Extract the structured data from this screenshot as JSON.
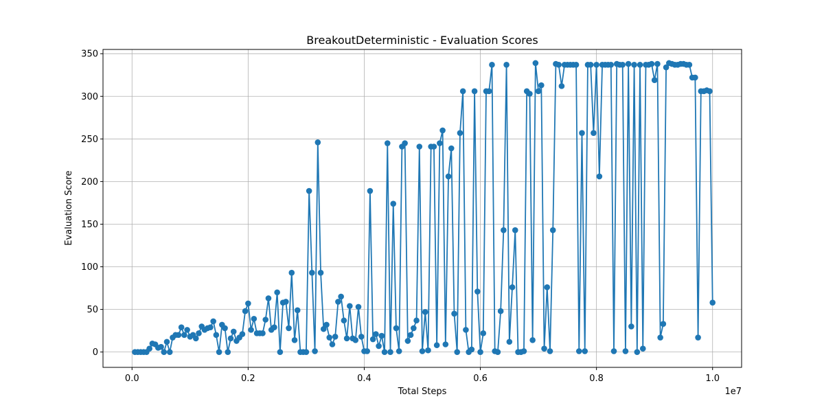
{
  "chart_data": {
    "type": "line",
    "title": "BreakoutDeterministic - Evaluation Scores",
    "xlabel": "Total Steps",
    "ylabel": "Evaluation Score",
    "x_offset_label": "1e7",
    "xlim": [
      -0.05,
      1.05
    ],
    "ylim": [
      -18,
      355
    ],
    "xticks": [
      0.0,
      0.2,
      0.4,
      0.6,
      0.8,
      1.0
    ],
    "xtick_labels": [
      "0.0",
      "0.2",
      "0.4",
      "0.6",
      "0.8",
      "1.0"
    ],
    "yticks": [
      0,
      50,
      100,
      150,
      200,
      250,
      300,
      350
    ],
    "ytick_labels": [
      "0",
      "50",
      "100",
      "150",
      "200",
      "250",
      "300",
      "350"
    ],
    "grid": true,
    "line_color": "#1f77b4",
    "marker": "circle",
    "x": [
      0.005,
      0.01,
      0.015,
      0.02,
      0.025,
      0.03,
      0.035,
      0.04,
      0.045,
      0.05,
      0.055,
      0.06,
      0.065,
      0.07,
      0.075,
      0.08,
      0.085,
      0.09,
      0.095,
      0.1,
      0.105,
      0.11,
      0.115,
      0.12,
      0.125,
      0.13,
      0.135,
      0.14,
      0.145,
      0.15,
      0.155,
      0.16,
      0.165,
      0.17,
      0.175,
      0.18,
      0.185,
      0.19,
      0.195,
      0.2,
      0.205,
      0.21,
      0.215,
      0.22,
      0.225,
      0.23,
      0.235,
      0.24,
      0.245,
      0.25,
      0.255,
      0.26,
      0.265,
      0.27,
      0.275,
      0.28,
      0.285,
      0.29,
      0.295,
      0.3,
      0.305,
      0.31,
      0.315,
      0.32,
      0.325,
      0.33,
      0.335,
      0.34,
      0.345,
      0.35,
      0.355,
      0.36,
      0.365,
      0.37,
      0.375,
      0.38,
      0.385,
      0.39,
      0.395,
      0.4,
      0.405,
      0.41,
      0.415,
      0.42,
      0.425,
      0.43,
      0.435,
      0.44,
      0.445,
      0.45,
      0.455,
      0.46,
      0.465,
      0.47,
      0.475,
      0.48,
      0.485,
      0.49,
      0.495,
      0.5,
      0.505,
      0.51,
      0.515,
      0.52,
      0.525,
      0.53,
      0.535,
      0.54,
      0.545,
      0.55,
      0.555,
      0.56,
      0.565,
      0.57,
      0.575,
      0.58,
      0.585,
      0.59,
      0.595,
      0.6,
      0.605,
      0.61,
      0.615,
      0.62,
      0.625,
      0.63,
      0.635,
      0.64,
      0.645,
      0.65,
      0.655,
      0.66,
      0.665,
      0.67,
      0.675,
      0.68,
      0.685,
      0.69,
      0.695,
      0.7,
      0.705,
      0.71,
      0.715,
      0.72,
      0.725,
      0.73,
      0.735,
      0.74,
      0.745,
      0.75,
      0.755,
      0.76,
      0.765,
      0.77,
      0.775,
      0.78,
      0.785,
      0.79,
      0.795,
      0.8,
      0.805,
      0.81,
      0.815,
      0.82,
      0.825,
      0.83,
      0.835,
      0.84,
      0.845,
      0.85,
      0.855,
      0.86,
      0.865,
      0.87,
      0.875,
      0.88,
      0.885,
      0.89,
      0.895,
      0.9,
      0.905,
      0.91,
      0.915,
      0.92,
      0.925,
      0.93,
      0.935,
      0.94,
      0.945,
      0.95,
      0.955,
      0.96,
      0.965,
      0.97,
      0.975,
      0.98,
      0.985,
      0.99,
      0.995,
      1.0
    ],
    "y": [
      0,
      0,
      0,
      0,
      0,
      4,
      10,
      9,
      5,
      6,
      0,
      12,
      0,
      17,
      20,
      20,
      29,
      20,
      26,
      18,
      20,
      16,
      22,
      30,
      26,
      28,
      29,
      36,
      20,
      0,
      32,
      28,
      0,
      16,
      24,
      13,
      17,
      21,
      48,
      57,
      26,
      39,
      22,
      22,
      22,
      38,
      63,
      26,
      29,
      70,
      0,
      58,
      59,
      28,
      93,
      14,
      49,
      0,
      0,
      0,
      189,
      93,
      1,
      246,
      93,
      27,
      32,
      17,
      9,
      18,
      59,
      65,
      37,
      16,
      54,
      16,
      14,
      53,
      18,
      1,
      1,
      189,
      15,
      21,
      7,
      19,
      0,
      245,
      0,
      174,
      28,
      1,
      241,
      245,
      13,
      20,
      28,
      37,
      241,
      1,
      47,
      2,
      241,
      241,
      8,
      245,
      260,
      9,
      206,
      239,
      45,
      0,
      257,
      306,
      26,
      0,
      3,
      306,
      71,
      0,
      22,
      306,
      306,
      337,
      1,
      0,
      48,
      143,
      337,
      12,
      76,
      143,
      0,
      0,
      1,
      306,
      303,
      14,
      339,
      306,
      313,
      4,
      76,
      1,
      143,
      338,
      337,
      312,
      337,
      337,
      337,
      337,
      337,
      1,
      257,
      1,
      337,
      337,
      257,
      337,
      206,
      337,
      337,
      337,
      337,
      1,
      338,
      337,
      337,
      1,
      338,
      30,
      337,
      0,
      337,
      4,
      337,
      337,
      338,
      319,
      338,
      17,
      33,
      334,
      339,
      338,
      337,
      337,
      338,
      338,
      337,
      337,
      322,
      322,
      17,
      306,
      306,
      307,
      306,
      58
    ]
  }
}
